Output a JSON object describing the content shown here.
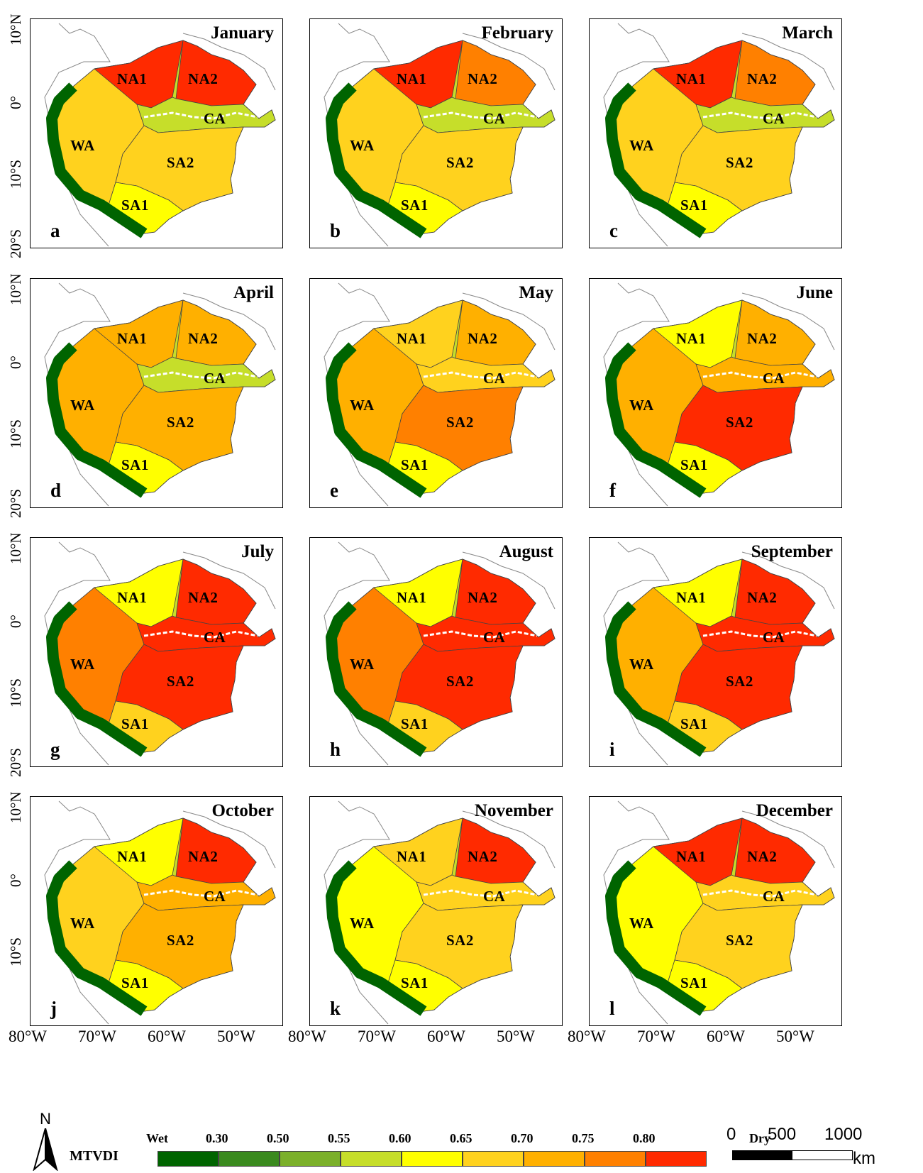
{
  "panels": [
    {
      "letter": "a",
      "month": "January",
      "regions": {
        "NA1": "NA1",
        "NA2": "NA2",
        "CA": "CA",
        "WA": "WA",
        "SA2": "SA2",
        "SA1": "SA1"
      }
    },
    {
      "letter": "b",
      "month": "February",
      "regions": {
        "NA1": "NA1",
        "NA2": "NA2",
        "CA": "CA",
        "WA": "WA",
        "SA2": "SA2",
        "SA1": "SA1"
      }
    },
    {
      "letter": "c",
      "month": "March",
      "regions": {
        "NA1": "NA1",
        "NA2": "NA2",
        "CA": "CA",
        "WA": "WA",
        "SA2": "SA2",
        "SA1": "SA1"
      }
    },
    {
      "letter": "d",
      "month": "April",
      "regions": {
        "NA1": "NA1",
        "NA2": "NA2",
        "CA": "CA",
        "WA": "WA",
        "SA2": "SA2",
        "SA1": "SA1"
      }
    },
    {
      "letter": "e",
      "month": "May",
      "regions": {
        "NA1": "NA1",
        "NA2": "NA2",
        "CA": "CA",
        "WA": "WA",
        "SA2": "SA2",
        "SA1": "SA1"
      }
    },
    {
      "letter": "f",
      "month": "June",
      "regions": {
        "NA1": "NA1",
        "NA2": "NA2",
        "CA": "CA",
        "WA": "WA",
        "SA2": "SA2",
        "SA1": "SA1"
      }
    },
    {
      "letter": "g",
      "month": "July",
      "regions": {
        "NA1": "NA1",
        "NA2": "NA2",
        "CA": "CA",
        "WA": "WA",
        "SA2": "SA2",
        "SA1": "SA1"
      }
    },
    {
      "letter": "h",
      "month": "August",
      "regions": {
        "NA1": "NA1",
        "NA2": "NA2",
        "CA": "CA",
        "WA": "WA",
        "SA2": "SA2",
        "SA1": "SA1"
      }
    },
    {
      "letter": "i",
      "month": "September",
      "regions": {
        "NA1": "NA1",
        "NA2": "NA2",
        "CA": "CA",
        "WA": "WA",
        "SA2": "SA2",
        "SA1": "SA1"
      }
    },
    {
      "letter": "j",
      "month": "October",
      "regions": {
        "NA1": "NA1",
        "NA2": "NA2",
        "CA": "CA",
        "WA": "WA",
        "SA2": "SA2",
        "SA1": "SA1"
      }
    },
    {
      "letter": "k",
      "month": "November",
      "regions": {
        "NA1": "NA1",
        "NA2": "NA2",
        "CA": "CA",
        "WA": "WA",
        "SA2": "SA2",
        "SA1": "SA1"
      }
    },
    {
      "letter": "l",
      "month": "December",
      "regions": {
        "NA1": "NA1",
        "NA2": "NA2",
        "CA": "CA",
        "WA": "WA",
        "SA2": "SA2",
        "SA1": "SA1"
      }
    }
  ],
  "axes": {
    "lat_row_1": [
      "10°N",
      "0°",
      "10°S",
      "20°S"
    ],
    "lat_row_2": [
      "10°N",
      "0°",
      "10°S",
      "20°S"
    ],
    "lat_row_3": [
      "10°N",
      "0°",
      "10°S",
      "20°S"
    ],
    "lat_row_4": [
      "10°N",
      "0°",
      "10°S"
    ],
    "lon_col_1": [
      "80°W",
      "70°W",
      "60°W",
      "50°W"
    ],
    "lon_col_2": [
      "80°W",
      "70°W",
      "60°W",
      "50°W"
    ],
    "lon_col_3": [
      "80°W",
      "70°W",
      "60°W",
      "50°W"
    ]
  },
  "legend": {
    "title": "MTVDI",
    "ticks": [
      "Wet",
      "0.30",
      "0.50",
      "0.55",
      "0.60",
      "0.65",
      "0.70",
      "0.75",
      "0.80",
      "Dry"
    ],
    "colors": [
      "#006400",
      "#3a8a1e",
      "#7bb02a",
      "#c6de2a",
      "#ffff00",
      "#ffd21e",
      "#ffb000",
      "#ff8000",
      "#ff2a00"
    ]
  },
  "north_arrow": {
    "label": "N"
  },
  "scale_bar": {
    "labels": [
      "0",
      "500",
      "1000"
    ],
    "unit": "km"
  },
  "dryness": {
    "note_colors_index": "index into legend.colors per region per month",
    "NA1": [
      8,
      8,
      8,
      6,
      5,
      4,
      4,
      4,
      4,
      4,
      5,
      8
    ],
    "NA2": [
      8,
      7,
      7,
      6,
      6,
      6,
      8,
      8,
      8,
      8,
      8,
      8
    ],
    "CA": [
      3,
      3,
      3,
      3,
      5,
      6,
      8,
      8,
      8,
      6,
      5,
      5
    ],
    "WA": [
      5,
      5,
      5,
      6,
      6,
      6,
      7,
      7,
      6,
      5,
      4,
      4
    ],
    "SA2": [
      5,
      5,
      5,
      6,
      7,
      8,
      8,
      8,
      8,
      6,
      5,
      5
    ],
    "SA1": [
      4,
      4,
      4,
      4,
      4,
      4,
      5,
      5,
      5,
      4,
      4,
      4
    ]
  }
}
